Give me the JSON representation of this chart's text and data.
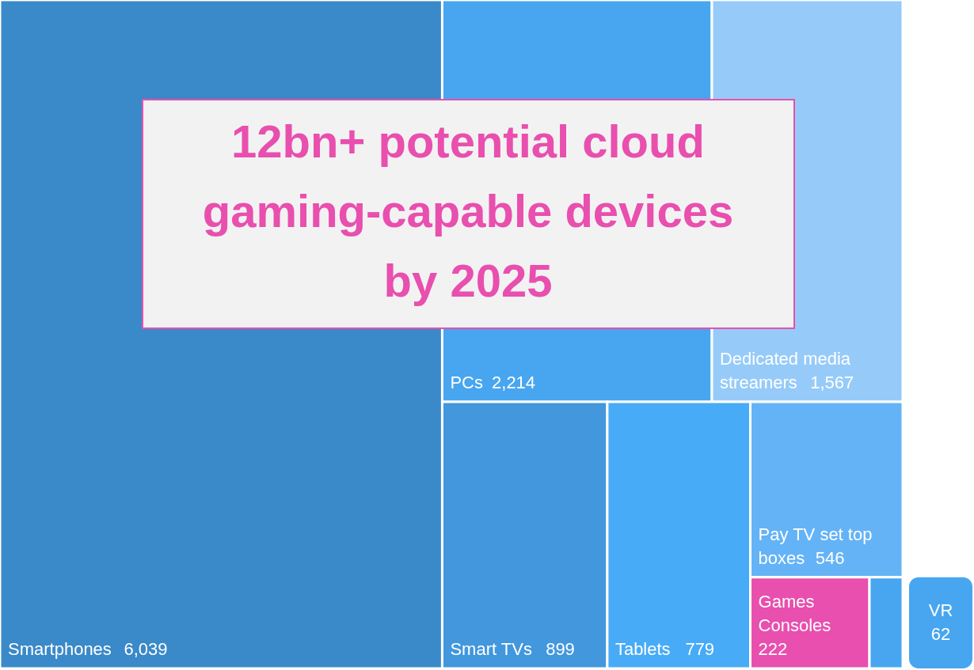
{
  "chart_data": {
    "type": "other",
    "title": "12bn+ potential cloud gaming-capable devices by 2025",
    "categories": [
      "Smartphones",
      "PCs",
      "Dedicated media streamers",
      "Smart TVs",
      "Tablets",
      "Pay TV set top boxes",
      "Games Consoles",
      "VR"
    ],
    "values": [
      6039,
      2214,
      1567,
      899,
      779,
      546,
      222,
      62
    ],
    "colors": [
      "#3a89c9",
      "#47a6ef",
      "#96cbf9",
      "#4297dd",
      "#47abf7",
      "#64b3f6",
      "#e84fae",
      "#47a6ef"
    ],
    "value_labels": [
      "6,039",
      "2,214",
      "1,567",
      "899",
      "779",
      "546",
      "222",
      "62"
    ]
  }
}
